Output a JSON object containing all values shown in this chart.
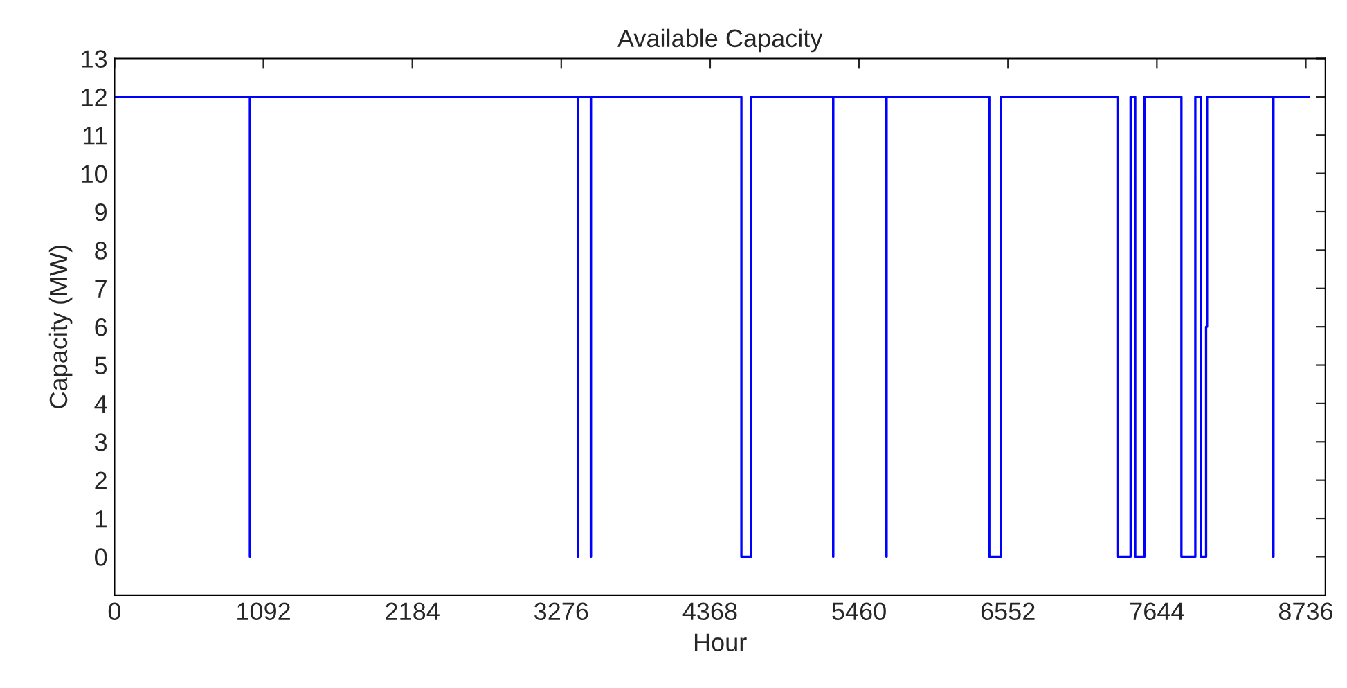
{
  "chart_data": {
    "type": "step",
    "title": "Available Capacity",
    "xlabel": "Hour",
    "ylabel": "Capacity (MW)",
    "x": [
      1,
      993,
      994,
      3398,
      3399,
      3493,
      3494,
      4597,
      4669,
      5270,
      5271,
      5661,
      5662,
      6415,
      6500,
      7355,
      7451,
      7485,
      7553,
      7824,
      7926,
      7968,
      8005,
      8012,
      8496,
      8499,
      8760
    ],
    "series": [
      {
        "color": "#0000ff",
        "values": [
          12,
          0,
          12,
          0,
          12,
          0,
          12,
          0,
          12,
          0,
          12,
          0,
          12,
          0,
          12,
          0,
          12,
          0,
          12,
          0,
          12,
          0,
          6,
          12,
          0,
          12,
          12
        ]
      }
    ],
    "xlim": [
      0,
      8880
    ],
    "xticks": [
      0,
      1092,
      2184,
      3276,
      4368,
      5460,
      6552,
      7644,
      8736
    ],
    "ylim": [
      -1,
      13
    ],
    "yticks": [
      0,
      1,
      2,
      3,
      4,
      5,
      6,
      7,
      8,
      9,
      10,
      11,
      12,
      13
    ],
    "grid": false,
    "legend": false
  }
}
